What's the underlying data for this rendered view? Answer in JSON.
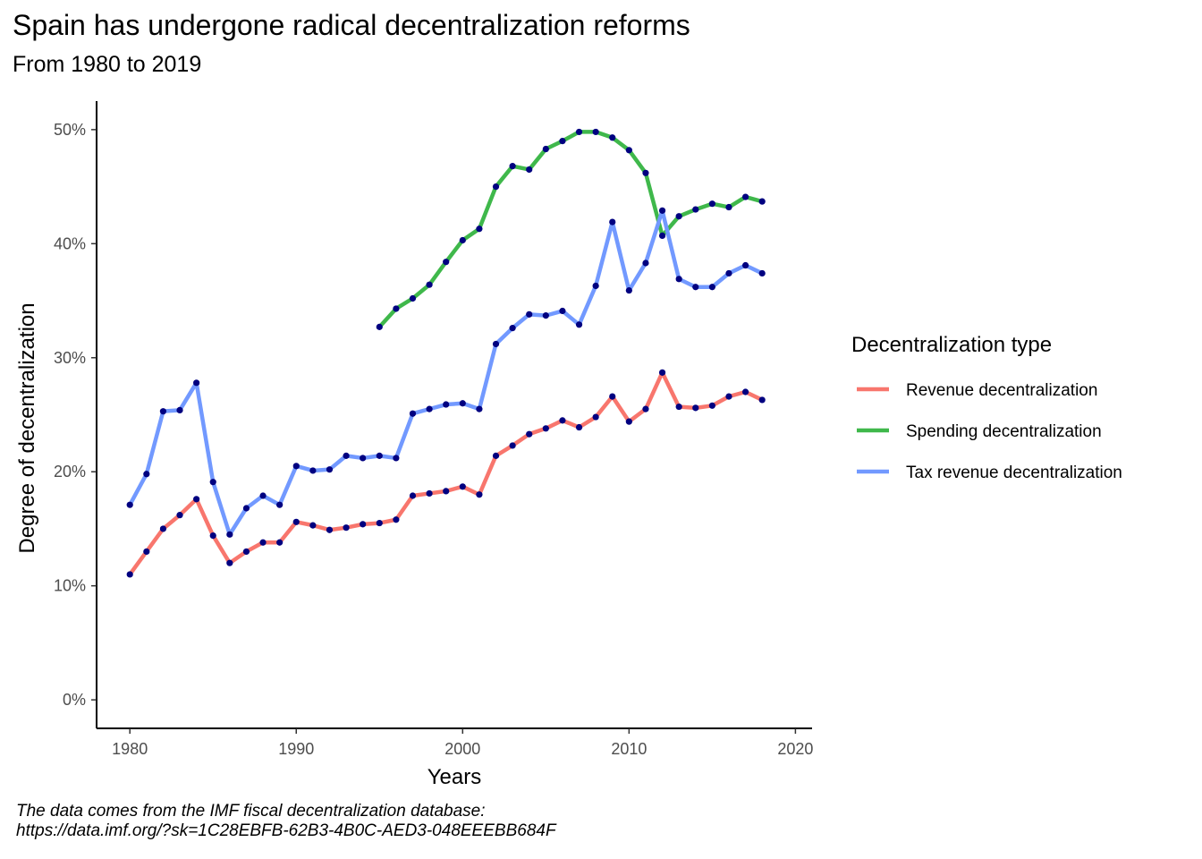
{
  "title": "Spain has undergone radical decentralization reforms",
  "subtitle": "From 1980 to 2019",
  "caption_line1": "The data comes from the IMF fiscal decentralization database:",
  "caption_line2": "https://data.imf.org/?sk=1C28EBFB-62B3-4B0C-AED3-048EEEBB684F",
  "colors": {
    "revenue": "#F8766D",
    "spending": "#3FB84B",
    "tax": "#7299FF",
    "points": "#000080",
    "axis": "#000000",
    "tick_text": "#4d4d4d"
  },
  "chart_data": {
    "type": "line",
    "xlabel": "Years",
    "ylabel": "Degree of decentralization",
    "xlim": [
      1978,
      2021
    ],
    "ylim": [
      -2.5,
      52.5
    ],
    "x_ticks": [
      1980,
      1990,
      2000,
      2010,
      2020
    ],
    "x_tick_labels": [
      "1980",
      "1990",
      "2000",
      "2010",
      "2020"
    ],
    "y_ticks": [
      0,
      10,
      20,
      30,
      40,
      50
    ],
    "y_tick_labels": [
      "0%",
      "10%",
      "20%",
      "30%",
      "40%",
      "50%"
    ],
    "grid": false,
    "legend_title": "Decentralization type",
    "legend_position": "right",
    "series": [
      {
        "name": "Revenue decentralization",
        "color_key": "revenue",
        "x": [
          1980,
          1981,
          1982,
          1983,
          1984,
          1985,
          1986,
          1987,
          1988,
          1989,
          1990,
          1991,
          1992,
          1993,
          1994,
          1995,
          1996,
          1997,
          1998,
          1999,
          2000,
          2001,
          2002,
          2003,
          2004,
          2005,
          2006,
          2007,
          2008,
          2009,
          2010,
          2011,
          2012,
          2013,
          2014,
          2015,
          2016,
          2017,
          2018
        ],
        "y": [
          11.0,
          13.0,
          15.0,
          16.2,
          17.6,
          14.4,
          12.0,
          13.0,
          13.8,
          13.8,
          15.6,
          15.3,
          14.9,
          15.1,
          15.4,
          15.5,
          15.8,
          17.9,
          18.1,
          18.3,
          18.7,
          18.0,
          21.4,
          22.3,
          23.3,
          23.8,
          24.5,
          23.9,
          24.8,
          26.6,
          24.4,
          25.5,
          28.7,
          25.7,
          25.6,
          25.8,
          26.6,
          27.0,
          26.3
        ]
      },
      {
        "name": "Spending decentralization",
        "color_key": "spending",
        "x": [
          1995,
          1996,
          1997,
          1998,
          1999,
          2000,
          2001,
          2002,
          2003,
          2004,
          2005,
          2006,
          2007,
          2008,
          2009,
          2010,
          2011,
          2012,
          2013,
          2014,
          2015,
          2016,
          2017,
          2018
        ],
        "y": [
          32.7,
          34.3,
          35.2,
          36.4,
          38.4,
          40.3,
          41.3,
          45.0,
          46.8,
          46.5,
          48.3,
          49.0,
          49.8,
          49.8,
          49.3,
          48.2,
          46.2,
          40.7,
          42.4,
          43.0,
          43.5,
          43.2,
          44.1,
          43.7
        ]
      },
      {
        "name": "Tax revenue decentralization",
        "color_key": "tax",
        "x": [
          1980,
          1981,
          1982,
          1983,
          1984,
          1985,
          1986,
          1987,
          1988,
          1989,
          1990,
          1991,
          1992,
          1993,
          1994,
          1995,
          1996,
          1997,
          1998,
          1999,
          2000,
          2001,
          2002,
          2003,
          2004,
          2005,
          2006,
          2007,
          2008,
          2009,
          2010,
          2011,
          2012,
          2013,
          2014,
          2015,
          2016,
          2017,
          2018
        ],
        "y": [
          17.1,
          19.8,
          25.3,
          25.4,
          27.8,
          19.1,
          14.5,
          16.8,
          17.9,
          17.1,
          20.5,
          20.1,
          20.2,
          21.4,
          21.2,
          21.4,
          21.2,
          25.1,
          25.5,
          25.9,
          26.0,
          25.5,
          31.2,
          32.6,
          33.8,
          33.7,
          34.1,
          32.9,
          36.3,
          41.9,
          35.9,
          38.3,
          42.9,
          36.9,
          36.2,
          36.2,
          37.4,
          38.1,
          37.4
        ]
      }
    ]
  }
}
